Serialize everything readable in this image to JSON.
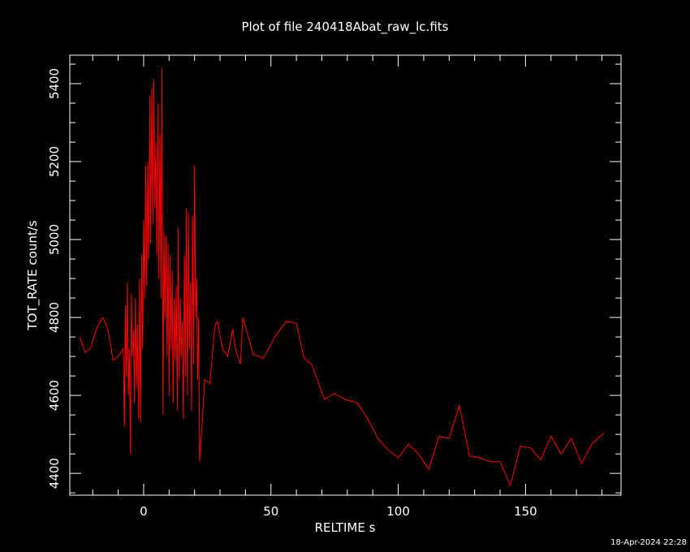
{
  "chart_data": {
    "type": "line",
    "title": "Plot of file 240418Abat_raw_lc.fits",
    "x_label": "RELTIME  s",
    "y_label": "TOT_RATE  count/s",
    "timestamp": "18-Apr-2024 22:28",
    "xlim": [
      -29,
      187.5
    ],
    "ylim": [
      4344,
      5473
    ],
    "xticks": [
      0,
      50,
      100,
      150
    ],
    "yticks": [
      4400,
      4600,
      4800,
      5000,
      5200,
      5400
    ],
    "xminorticks": [
      -20,
      -10,
      10,
      20,
      30,
      40,
      60,
      70,
      80,
      90,
      110,
      120,
      130,
      140,
      160,
      170,
      180
    ],
    "yminorticks": [
      4350,
      4450,
      4500,
      4550,
      4650,
      4700,
      4750,
      4850,
      4900,
      4950,
      5050,
      5100,
      5150,
      5250,
      5300,
      5350,
      5450
    ],
    "x": [
      -25,
      -23,
      -21,
      -18,
      -16,
      -14,
      -12,
      -10,
      -8.0,
      -7.6,
      -7.2,
      -6.8,
      -6.4,
      -6.0,
      -5.6,
      -5.2,
      -4.8,
      -4.4,
      -4.0,
      -3.6,
      -3.2,
      -2.8,
      -2.4,
      -2.0,
      -1.6,
      -1.2,
      -0.8,
      -0.4,
      0.0,
      0.4,
      0.8,
      1.2,
      1.6,
      2.0,
      2.4,
      2.8,
      3.2,
      3.6,
      4.0,
      4.4,
      4.8,
      5.2,
      5.6,
      6.0,
      6.4,
      6.8,
      7.2,
      7.6,
      8.0,
      8.4,
      8.8,
      9.2,
      9.6,
      10.0,
      10.4,
      10.8,
      11.2,
      11.6,
      12.0,
      12.4,
      12.8,
      13.2,
      13.6,
      14.0,
      14.4,
      14.8,
      15.2,
      15.6,
      16.0,
      16.4,
      16.8,
      17.2,
      17.6,
      18.0,
      18.4,
      18.8,
      19.2,
      19.6,
      20.0,
      20.4,
      20.8,
      21.2,
      21.6,
      22.0,
      24,
      26,
      28,
      29,
      31,
      33,
      35,
      36,
      38,
      39,
      43,
      47,
      52,
      56,
      60,
      63,
      66,
      71,
      75,
      79,
      84,
      88,
      92,
      96,
      100,
      104,
      108,
      112,
      116,
      120,
      124,
      128,
      132,
      136,
      140,
      144,
      148,
      152,
      156,
      160,
      164,
      168,
      172,
      176,
      181
    ],
    "series": [
      {
        "color": "#ff0000",
        "values": [
          4750,
          4710,
          4720,
          4780,
          4800,
          4770,
          4690,
          4700,
          4720,
          4520,
          4830,
          4650,
          4890,
          4600,
          4720,
          4450,
          4860,
          4700,
          4770,
          4580,
          4850,
          4620,
          4780,
          4540,
          4900,
          4530,
          4960,
          4720,
          5050,
          4850,
          5190,
          4880,
          5200,
          4950,
          5370,
          4990,
          5390,
          5040,
          5410,
          5080,
          5250,
          4960,
          5350,
          4900,
          5270,
          4850,
          5440,
          4550,
          5020,
          4800,
          5010,
          4700,
          4990,
          4600,
          4960,
          4720,
          4920,
          4580,
          4850,
          4690,
          4880,
          4560,
          5030,
          4640,
          4850,
          4700,
          4790,
          4540,
          4960,
          4650,
          5080,
          4600,
          5070,
          4720,
          4890,
          4560,
          5060,
          4680,
          5190,
          4800,
          4900,
          4640,
          4800,
          4430,
          4640,
          4630,
          4780,
          4790,
          4720,
          4700,
          4770,
          4720,
          4680,
          4800,
          4705,
          4695,
          4755,
          4790,
          4785,
          4695,
          4680,
          4590,
          4605,
          4590,
          4580,
          4540,
          4490,
          4460,
          4440,
          4475,
          4450,
          4410,
          4495,
          4490,
          4575,
          4445,
          4440,
          4430,
          4430,
          4370,
          4470,
          4465,
          4435,
          4495,
          4450,
          4490,
          4425,
          4475,
          4505
        ]
      }
    ]
  }
}
